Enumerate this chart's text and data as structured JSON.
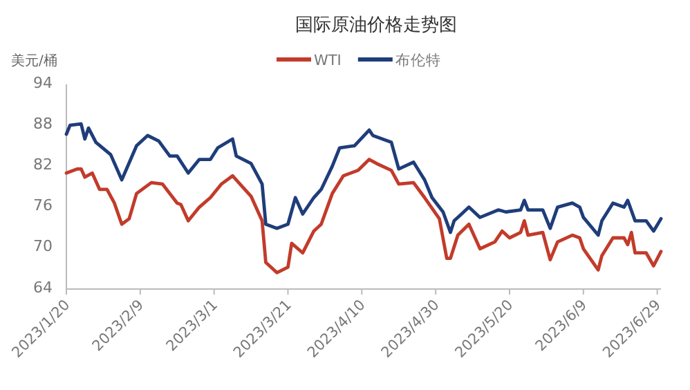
{
  "chart_data": {
    "type": "line",
    "title": "国际原油价格走势图",
    "ylabel": "美元/桶",
    "legend": "top",
    "grid": false,
    "marker": "none",
    "line_style": "solid",
    "xlim": [
      "2023-01-20",
      "2023-06-30"
    ],
    "ylim": [
      64,
      94
    ],
    "yticks": [
      64,
      70,
      76,
      82,
      88,
      94
    ],
    "xticks": [
      {
        "value": "2023-01-20",
        "label": "2023/1/20"
      },
      {
        "value": "2023-02-09",
        "label": "2023/2/9"
      },
      {
        "value": "2023-03-01",
        "label": "2023/3/1"
      },
      {
        "value": "2023-03-21",
        "label": "2023/3/21"
      },
      {
        "value": "2023-04-10",
        "label": "2023/4/10"
      },
      {
        "value": "2023-04-30",
        "label": "2023/4/30"
      },
      {
        "value": "2023-05-20",
        "label": "2023/5/20"
      },
      {
        "value": "2023-06-09",
        "label": "2023/6/9"
      },
      {
        "value": "2023-06-29",
        "label": "2023/6/29"
      }
    ],
    "series": [
      {
        "name": "WTI",
        "color": "#c23b2b",
        "x": [
          "2023-01-20",
          "2023-01-23",
          "2023-01-24",
          "2023-01-25",
          "2023-01-27",
          "2023-01-29",
          "2023-01-31",
          "2023-02-02",
          "2023-02-04",
          "2023-02-06",
          "2023-02-08",
          "2023-02-12",
          "2023-02-15",
          "2023-02-19",
          "2023-02-20",
          "2023-02-22",
          "2023-02-25",
          "2023-02-28",
          "2023-03-03",
          "2023-03-06",
          "2023-03-08",
          "2023-03-11",
          "2023-03-14",
          "2023-03-15",
          "2023-03-18",
          "2023-03-21",
          "2023-03-22",
          "2023-03-25",
          "2023-03-28",
          "2023-03-30",
          "2023-04-02",
          "2023-04-05",
          "2023-04-09",
          "2023-04-12",
          "2023-04-14",
          "2023-04-18",
          "2023-04-20",
          "2023-04-24",
          "2023-04-27",
          "2023-05-01",
          "2023-05-03",
          "2023-05-04",
          "2023-05-06",
          "2023-05-09",
          "2023-05-12",
          "2023-05-16",
          "2023-05-18",
          "2023-05-20",
          "2023-05-23",
          "2023-05-24",
          "2023-05-25",
          "2023-05-29",
          "2023-05-31",
          "2023-06-02",
          "2023-06-06",
          "2023-06-08",
          "2023-06-09",
          "2023-06-13",
          "2023-06-14",
          "2023-06-17",
          "2023-06-20",
          "2023-06-21",
          "2023-06-22",
          "2023-06-23",
          "2023-06-26",
          "2023-06-28",
          "2023-06-30"
        ],
        "values": [
          81,
          81.6,
          81.6,
          80.4,
          81,
          78.6,
          78.6,
          76.6,
          73.5,
          74.3,
          78,
          79.6,
          79.4,
          76.6,
          76.4,
          74,
          76,
          77.4,
          79.4,
          80.6,
          79.4,
          77.6,
          74,
          67.9,
          66.4,
          67.2,
          70.7,
          69.3,
          72.5,
          73.5,
          78,
          80.6,
          81.4,
          83,
          82.4,
          81.4,
          79.4,
          79.6,
          77.4,
          74.3,
          68.5,
          68.5,
          71.9,
          73.5,
          69.9,
          70.9,
          72.5,
          71.5,
          72.3,
          74,
          71.9,
          72.3,
          68.3,
          70.9,
          71.9,
          71.5,
          69.9,
          66.8,
          68.9,
          71.5,
          71.5,
          70.5,
          72.3,
          69.3,
          69.3,
          67.4,
          69.5
        ]
      },
      {
        "name": "布伦特",
        "color": "#1f3d7a",
        "x": [
          "2023-01-20",
          "2023-01-21",
          "2023-01-24",
          "2023-01-25",
          "2023-01-26",
          "2023-01-28",
          "2023-02-01",
          "2023-02-04",
          "2023-02-08",
          "2023-02-11",
          "2023-02-14",
          "2023-02-17",
          "2023-02-19",
          "2023-02-22",
          "2023-02-25",
          "2023-02-28",
          "2023-03-02",
          "2023-03-06",
          "2023-03-07",
          "2023-03-11",
          "2023-03-14",
          "2023-03-15",
          "2023-03-18",
          "2023-03-21",
          "2023-03-23",
          "2023-03-25",
          "2023-03-28",
          "2023-03-30",
          "2023-04-02",
          "2023-04-04",
          "2023-04-08",
          "2023-04-12",
          "2023-04-13",
          "2023-04-18",
          "2023-04-20",
          "2023-04-24",
          "2023-04-27",
          "2023-04-29",
          "2023-05-02",
          "2023-05-04",
          "2023-05-05",
          "2023-05-07",
          "2023-05-09",
          "2023-05-12",
          "2023-05-17",
          "2023-05-19",
          "2023-05-23",
          "2023-05-24",
          "2023-05-25",
          "2023-05-29",
          "2023-05-31",
          "2023-06-02",
          "2023-06-06",
          "2023-06-08",
          "2023-06-09",
          "2023-06-13",
          "2023-06-14",
          "2023-06-17",
          "2023-06-20",
          "2023-06-21",
          "2023-06-23",
          "2023-06-26",
          "2023-06-28",
          "2023-06-30"
        ],
        "values": [
          86.7,
          88,
          88.2,
          86,
          87.6,
          85.5,
          83.7,
          80,
          85,
          86.5,
          85.7,
          83.5,
          83.5,
          81,
          83,
          83,
          84.7,
          86,
          83.5,
          82.4,
          79.4,
          73.5,
          72.9,
          73.5,
          77.4,
          75,
          77.4,
          78.6,
          82,
          84.7,
          85,
          87.3,
          86.5,
          85.5,
          81.6,
          82.6,
          80,
          77.4,
          75.3,
          72.3,
          74,
          75,
          76,
          74.5,
          75.6,
          75.3,
          75.6,
          77,
          75.6,
          75.6,
          72.9,
          76,
          76.6,
          76,
          74.5,
          71.9,
          74,
          76.6,
          76,
          77,
          74,
          74,
          72.5,
          74.3
        ]
      }
    ]
  }
}
